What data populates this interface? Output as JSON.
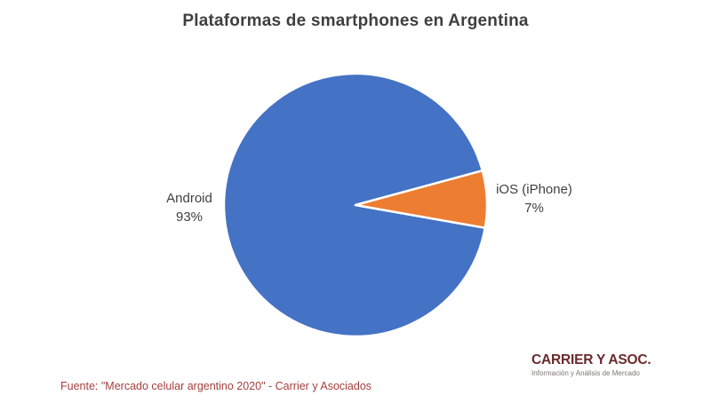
{
  "chart": {
    "title": "Plataformas de smartphones en Argentina"
  },
  "chart_data": {
    "type": "pie",
    "title": "Plataformas de smartphones en Argentina",
    "labels": [
      "Android",
      "iOS (iPhone)"
    ],
    "values": [
      93,
      7
    ],
    "unit": "%",
    "colors": [
      "#4472c4",
      "#ed7d31"
    ],
    "slice_border_color": "#ffffff",
    "legend": "none",
    "data_labels": "category name and percent, outside slices",
    "start_angle_deg": 10,
    "clockwise": true
  },
  "callouts": {
    "android": {
      "name": "Android",
      "value": "93%"
    },
    "ios": {
      "name": "iOS (iPhone)",
      "value": "7%"
    }
  },
  "footer": {
    "source": "Fuente: \"Mercado celular argentino 2020\" - Carrier y Asociados",
    "logo_title": "CARRIER Y ASOC.",
    "logo_subtitle": "Información y Análisis de Mercado"
  }
}
